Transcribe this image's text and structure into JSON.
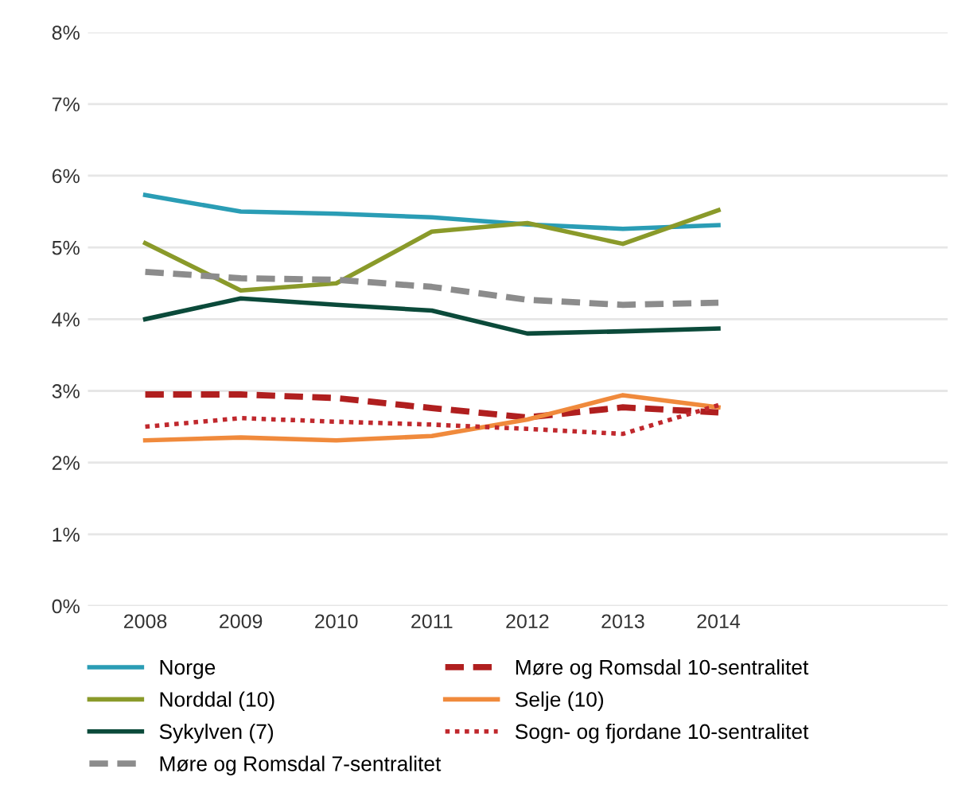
{
  "chart_data": {
    "type": "line",
    "categories": [
      "2008",
      "2009",
      "2010",
      "2011",
      "2012",
      "2013",
      "2014"
    ],
    "series": [
      {
        "name": "Norge",
        "color": "#2a9db5",
        "values": [
          5.73,
          5.5,
          5.47,
          5.42,
          5.32,
          5.26,
          5.31
        ]
      },
      {
        "name": "Norddal (10)",
        "color": "#8a9a2a",
        "values": [
          5.06,
          4.4,
          4.5,
          5.22,
          5.34,
          5.05,
          5.52
        ]
      },
      {
        "name": "Sykylven (7)",
        "color": "#0b4a3a",
        "values": [
          4.0,
          4.29,
          4.2,
          4.12,
          3.8,
          3.83,
          3.87
        ]
      },
      {
        "name": "Møre og Romsdal 7-sentralitet",
        "color": "#8c8c8c",
        "line_style": "dashed",
        "values": [
          4.66,
          4.57,
          4.55,
          4.45,
          4.27,
          4.2,
          4.23
        ]
      },
      {
        "name": "Møre og Romsdal 10-sentralitet",
        "color": "#b01f1f",
        "line_style": "dashed",
        "values": [
          2.95,
          2.95,
          2.9,
          2.76,
          2.63,
          2.77,
          2.7
        ]
      },
      {
        "name": "Selje (10)",
        "color": "#f08a3c",
        "values": [
          2.31,
          2.35,
          2.31,
          2.37,
          2.6,
          2.94,
          2.77
        ]
      },
      {
        "name": "Sogn- og fjordane 10-sentralitet",
        "color": "#c0282d",
        "line_style": "dotted",
        "values": [
          2.5,
          2.62,
          2.57,
          2.53,
          2.47,
          2.4,
          2.8
        ]
      }
    ],
    "ylim": [
      0,
      8
    ],
    "yticks": [
      {
        "value": 0,
        "label": "0%"
      },
      {
        "value": 1,
        "label": "1%"
      },
      {
        "value": 2,
        "label": "2%"
      },
      {
        "value": 3,
        "label": "3%"
      },
      {
        "value": 4,
        "label": "4%"
      },
      {
        "value": 5,
        "label": "5%"
      },
      {
        "value": 6,
        "label": "6%"
      },
      {
        "value": 7,
        "label": "7%"
      },
      {
        "value": 8,
        "label": "8%"
      }
    ],
    "grid": "y",
    "legend": "bottom",
    "line_style": "solid",
    "marker": "none"
  }
}
